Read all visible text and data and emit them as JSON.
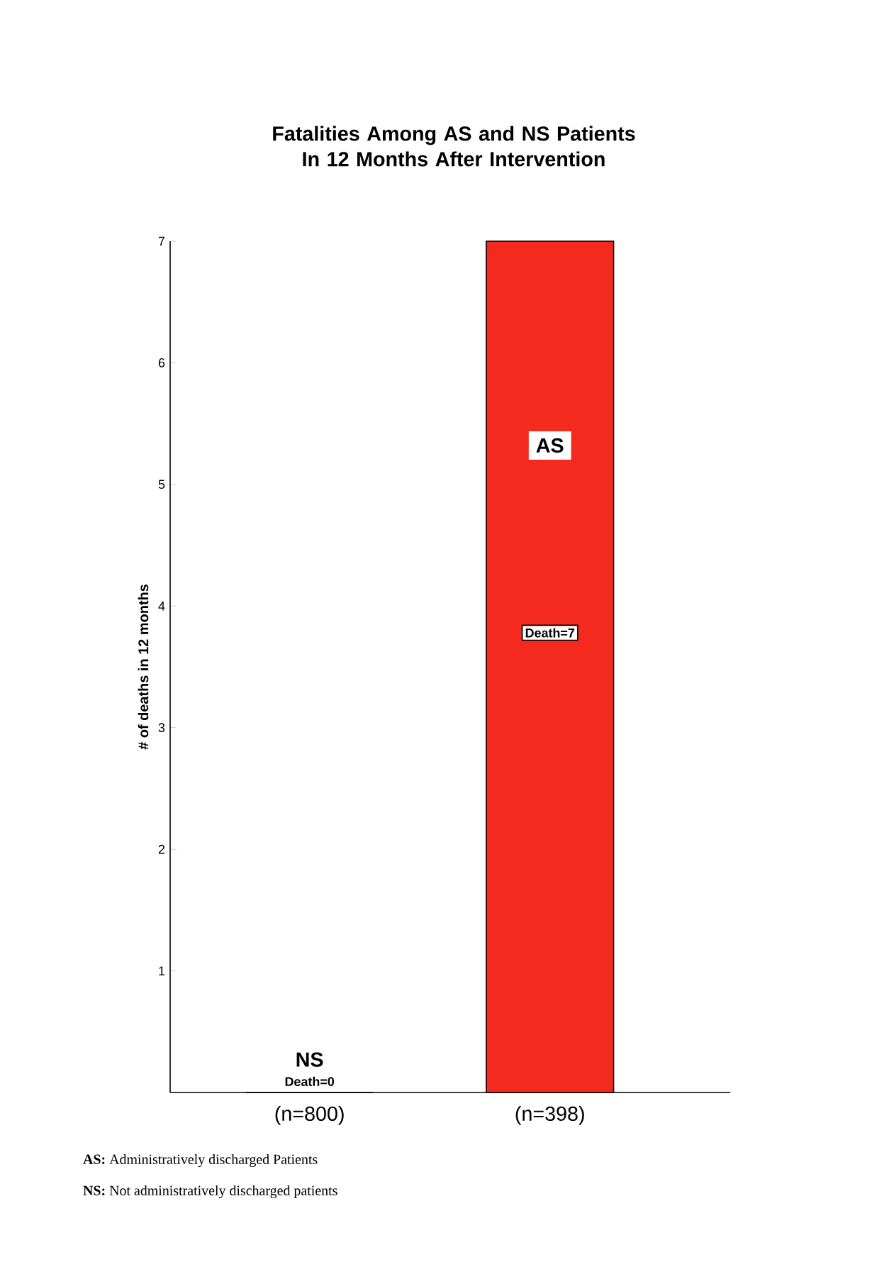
{
  "chart_data": {
    "type": "bar",
    "title": "Fatalities Among AS and NS Patients In 12 Months After Intervention",
    "ylabel": "# of deaths in 12 months",
    "categories": [
      "(n=800)",
      "(n=398)"
    ],
    "values": [
      0,
      7
    ],
    "colors": [
      "#1a9be0",
      "#f52a1e"
    ],
    "value_labels": [
      "Death=0",
      "Death=7"
    ],
    "ylim": [
      0,
      7
    ],
    "yticks": [
      1,
      2,
      3,
      4,
      5,
      6,
      7
    ],
    "annotations": [
      "NS",
      "AS",
      "**AS:** Administratively discharged Patients",
      "**NS:** Not administratively discharged patients"
    ],
    "grid": false
  }
}
